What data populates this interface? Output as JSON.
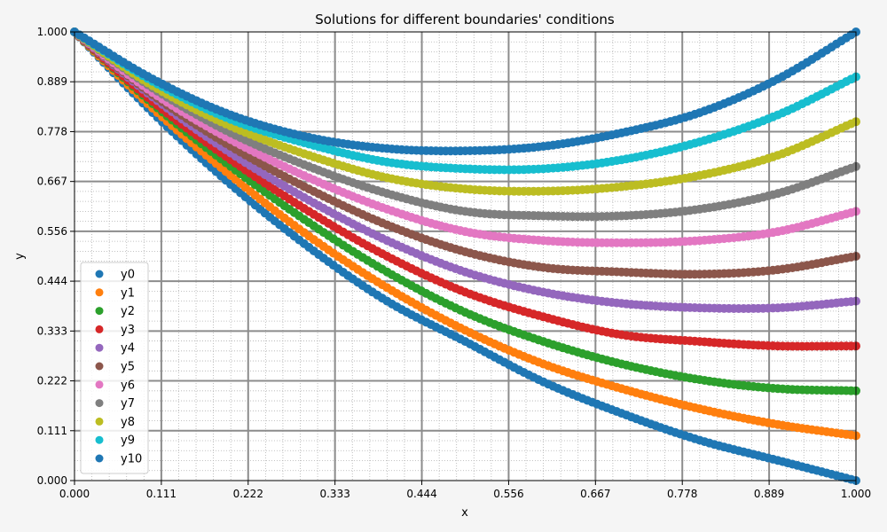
{
  "chart_data": {
    "type": "scatter",
    "title": "Solutions for different boundaries' conditions",
    "xlabel": "x",
    "ylabel": "y",
    "xlim": [
      0,
      1
    ],
    "ylim": [
      0,
      1
    ],
    "xticks": [
      "0.000",
      "0.111",
      "0.222",
      "0.333",
      "0.444",
      "0.556",
      "0.667",
      "0.778",
      "0.889",
      "1.000"
    ],
    "yticks": [
      "0.000",
      "0.111",
      "0.222",
      "0.333",
      "0.444",
      "0.556",
      "0.667",
      "0.778",
      "0.889",
      "1.000"
    ],
    "grid": "major and minor",
    "legend_position": "lower-left",
    "x": [
      0.0,
      0.1,
      0.2,
      0.3,
      0.4,
      0.5,
      0.6,
      0.7,
      0.8,
      0.9,
      1.0
    ],
    "series": [
      {
        "name": "y0",
        "color": "#1f77b4",
        "values": [
          1.0,
          0.82,
          0.66,
          0.52,
          0.4,
          0.31,
          0.22,
          0.15,
          0.09,
          0.045,
          0.0
        ]
      },
      {
        "name": "y1",
        "color": "#ff7f0e",
        "values": [
          1.0,
          0.83,
          0.68,
          0.545,
          0.43,
          0.335,
          0.26,
          0.205,
          0.16,
          0.125,
          0.1
        ]
      },
      {
        "name": "y2",
        "color": "#2ca02c",
        "values": [
          1.0,
          0.84,
          0.7,
          0.575,
          0.465,
          0.375,
          0.31,
          0.26,
          0.225,
          0.205,
          0.2
        ]
      },
      {
        "name": "y3",
        "color": "#d62728",
        "values": [
          1.0,
          0.845,
          0.715,
          0.6,
          0.5,
          0.42,
          0.365,
          0.325,
          0.31,
          0.3,
          0.3
        ]
      },
      {
        "name": "y4",
        "color": "#9467bd",
        "values": [
          1.0,
          0.855,
          0.73,
          0.625,
          0.535,
          0.465,
          0.42,
          0.395,
          0.385,
          0.385,
          0.4
        ]
      },
      {
        "name": "y5",
        "color": "#8c564b",
        "values": [
          1.0,
          0.86,
          0.745,
          0.65,
          0.57,
          0.51,
          0.475,
          0.465,
          0.46,
          0.47,
          0.5
        ]
      },
      {
        "name": "y6",
        "color": "#e377c2",
        "values": [
          1.0,
          0.865,
          0.76,
          0.675,
          0.605,
          0.555,
          0.535,
          0.53,
          0.535,
          0.555,
          0.6
        ]
      },
      {
        "name": "y7",
        "color": "#7f7f7f",
        "values": [
          1.0,
          0.875,
          0.775,
          0.7,
          0.64,
          0.6,
          0.59,
          0.59,
          0.605,
          0.64,
          0.7
        ]
      },
      {
        "name": "y8",
        "color": "#bcbd22",
        "values": [
          1.0,
          0.88,
          0.79,
          0.725,
          0.675,
          0.65,
          0.645,
          0.655,
          0.68,
          0.725,
          0.8
        ]
      },
      {
        "name": "y9",
        "color": "#17becf",
        "values": [
          1.0,
          0.89,
          0.805,
          0.75,
          0.71,
          0.695,
          0.695,
          0.715,
          0.755,
          0.815,
          0.9
        ]
      },
      {
        "name": "y10",
        "color": "#1f77b4",
        "values": [
          1.0,
          0.895,
          0.815,
          0.765,
          0.74,
          0.735,
          0.745,
          0.775,
          0.82,
          0.895,
          1.0
        ]
      }
    ]
  }
}
